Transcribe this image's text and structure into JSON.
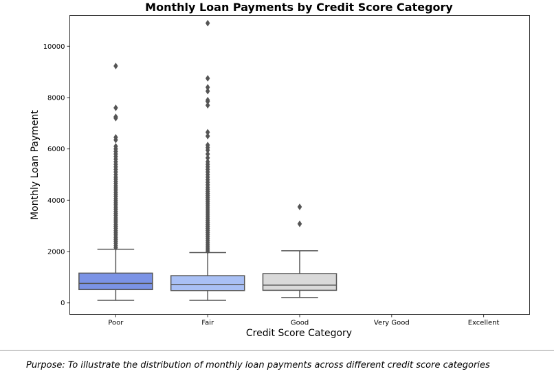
{
  "chart_data": {
    "type": "box",
    "title": "Monthly Loan Payments by Credit Score Category",
    "xlabel": "Credit Score Category",
    "ylabel": "Monthly Loan Payment",
    "ylim": [
      -450,
      11200
    ],
    "yticks": [
      0,
      2000,
      4000,
      6000,
      8000,
      10000
    ],
    "categories": [
      "Poor",
      "Fair",
      "Good",
      "Very Good",
      "Excellent"
    ],
    "boxes": [
      {
        "category": "Poor",
        "color": "#7b93e6",
        "whisker_low": 100,
        "q1": 520,
        "median": 760,
        "q3": 1160,
        "whisker_high": 2090,
        "outliers": [
          2150,
          2230,
          2320,
          2400,
          2480,
          2560,
          2650,
          2730,
          2810,
          2900,
          2980,
          3060,
          3150,
          3230,
          3310,
          3400,
          3480,
          3560,
          3650,
          3730,
          3820,
          3900,
          3980,
          4060,
          4150,
          4230,
          4310,
          4400,
          4480,
          4560,
          4650,
          4730,
          4820,
          4900,
          5000,
          5100,
          5200,
          5300,
          5400,
          5500,
          5600,
          5700,
          5800,
          5900,
          6000,
          6100,
          6350,
          6450,
          7200,
          7250,
          7600,
          9230
        ]
      },
      {
        "category": "Fair",
        "color": "#a9c0f5",
        "whisker_low": 100,
        "q1": 480,
        "median": 720,
        "q3": 1060,
        "whisker_high": 1960,
        "outliers": [
          2020,
          2100,
          2180,
          2260,
          2340,
          2420,
          2500,
          2580,
          2660,
          2740,
          2820,
          2900,
          2980,
          3060,
          3140,
          3220,
          3300,
          3380,
          3460,
          3540,
          3620,
          3700,
          3780,
          3860,
          3940,
          4020,
          4100,
          4180,
          4260,
          4340,
          4420,
          4500,
          4600,
          4700,
          4800,
          4900,
          5000,
          5100,
          5200,
          5300,
          5400,
          5500,
          5650,
          5800,
          5950,
          6050,
          6150,
          6500,
          6650,
          7700,
          7850,
          7900,
          8250,
          8400,
          8750,
          10900
        ]
      },
      {
        "category": "Good",
        "color": "#d9d9d9",
        "whisker_low": 210,
        "q1": 490,
        "median": 690,
        "q3": 1140,
        "whisker_high": 2030,
        "outliers": [
          3080,
          3740
        ]
      },
      {
        "category": "Very Good",
        "color": "",
        "empty": true
      },
      {
        "category": "Excellent",
        "color": "",
        "empty": true
      }
    ]
  },
  "footer": {
    "purpose_text": "Purpose: To illustrate the distribution of monthly loan payments across different credit score categories"
  }
}
